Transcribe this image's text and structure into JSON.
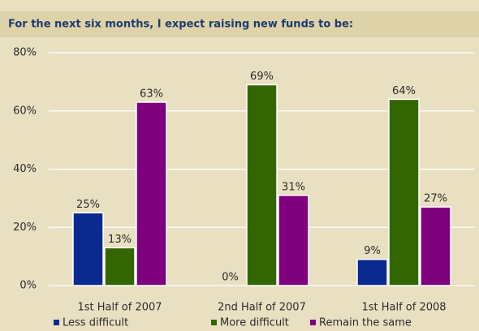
{
  "chart_data": {
    "type": "bar",
    "title": "For the next six months, I expect raising new funds to be:",
    "categories": [
      "1st Half of 2007",
      "2nd Half of 2007",
      "1st Half of 2008"
    ],
    "series": [
      {
        "name": "Less difficult",
        "color": "#0b2a8f",
        "values": [
          25,
          0,
          9
        ],
        "value_labels": [
          "25%",
          "0%",
          "9%"
        ]
      },
      {
        "name": "More difficult",
        "color": "#336600",
        "values": [
          13,
          69,
          64
        ],
        "value_labels": [
          "13%",
          "69%",
          "64%"
        ]
      },
      {
        "name": "Remain the same",
        "color": "#7f007f",
        "values": [
          63,
          31,
          27
        ],
        "value_labels": [
          "63%",
          "31%",
          "27%"
        ]
      }
    ],
    "ylim": [
      0,
      80
    ],
    "yticks": [
      {
        "value": 0,
        "label": "0%"
      },
      {
        "value": 20,
        "label": "20%"
      },
      {
        "value": 40,
        "label": "40%"
      },
      {
        "value": 60,
        "label": "60%"
      },
      {
        "value": 80,
        "label": "80%"
      }
    ],
    "grid": true,
    "legend": "bottom"
  }
}
